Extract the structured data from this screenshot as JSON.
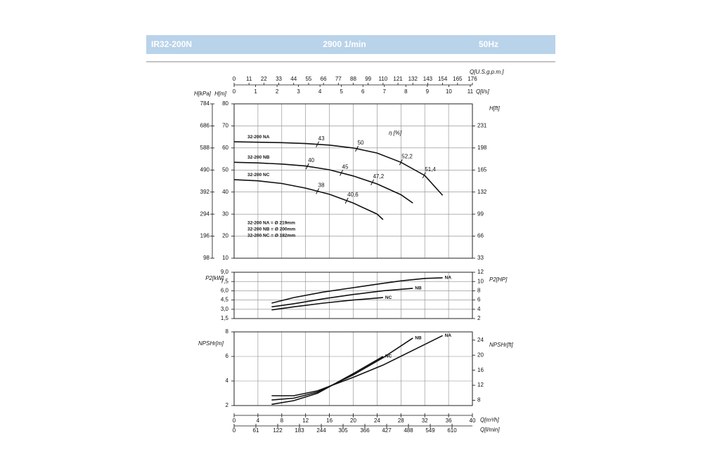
{
  "header": {
    "model": "IR32-200N",
    "speed": "2900 1/min",
    "frequency": "50Hz"
  },
  "chart_data": [
    {
      "type": "line",
      "xlim": [
        0,
        40
      ],
      "ylabel": "H[m]",
      "ylim": [
        10,
        80
      ],
      "yticks": [
        10,
        20,
        30,
        40,
        50,
        60,
        70,
        80
      ],
      "y2label": "H[ft]",
      "y2lim": [
        33,
        264
      ],
      "y2ticks": [
        33,
        66,
        99,
        132,
        165,
        198,
        231
      ],
      "y3label": "H[kPa]",
      "y3lim": [
        98,
        784
      ],
      "y3ticks": [
        98,
        196,
        294,
        392,
        490,
        588,
        686,
        784
      ],
      "top_axes": [
        {
          "label": "Q[U.S.g.p.m.]",
          "lim": [
            0,
            176
          ],
          "ticks": [
            0,
            11,
            22,
            33,
            44,
            55,
            66,
            77,
            88,
            99,
            110,
            121,
            132,
            143,
            154,
            165,
            176
          ]
        },
        {
          "label": "Q[l/s]",
          "lim": [
            0,
            11.1
          ],
          "ticks": [
            0,
            1,
            2,
            3,
            4,
            5,
            6,
            7,
            8,
            9,
            10,
            11
          ]
        }
      ],
      "eta_label": "η [%]",
      "notes": [
        "32-200 NA = Ø 219mm",
        "32-200 NB = Ø 200mm",
        "32-200 NC = Ø 182mm"
      ],
      "series": [
        {
          "name": "32-200 NA",
          "color": "#111111",
          "x": [
            0,
            4,
            8,
            12,
            16,
            20,
            24,
            28,
            32,
            35
          ],
          "values": [
            62.8,
            62.6,
            62.4,
            62,
            61.3,
            60,
            57.7,
            53.5,
            47.5,
            38.5
          ],
          "eta": {
            "x": [
              14,
              20.6,
              28,
              31.9
            ],
            "values": [
              43,
              50,
              52.2,
              51.4
            ],
            "value_labels": [
              "43",
              "50",
              "52,2",
              "51,4"
            ]
          }
        },
        {
          "name": "32-200 NB",
          "color": "#111111",
          "x": [
            0,
            4,
            8,
            12,
            16,
            20,
            24,
            28,
            30
          ],
          "values": [
            53.5,
            53.2,
            52.7,
            51.8,
            50.1,
            47.3,
            43.7,
            38.8,
            35
          ],
          "eta": {
            "x": [
              12.3,
              18,
              23.2
            ],
            "values": [
              40,
              45,
              47.2
            ],
            "value_labels": [
              "40",
              "45",
              "47,2"
            ]
          }
        },
        {
          "name": "32-200 NC",
          "color": "#111111",
          "x": [
            0,
            4,
            8,
            12,
            16,
            20,
            24,
            25
          ],
          "values": [
            45.6,
            45.1,
            43.9,
            41.8,
            39,
            35,
            30,
            27.5
          ],
          "eta": {
            "x": [
              14,
              18.9
            ],
            "values": [
              38,
              40.6
            ],
            "value_labels": [
              "38",
              "40,6"
            ]
          }
        }
      ]
    },
    {
      "type": "line",
      "xlim": [
        0,
        40
      ],
      "ylabel": "P2[kW]",
      "ylim": [
        1.5,
        9
      ],
      "yticks": [
        {
          "value": 1.5,
          "label": "1,5"
        },
        {
          "value": 3,
          "label": "3,0"
        },
        {
          "value": 4.5,
          "label": "4,5"
        },
        {
          "value": 6,
          "label": "6,0"
        },
        {
          "value": 7.5,
          "label": "7,5"
        },
        {
          "value": 9,
          "label": "9,0"
        }
      ],
      "y2label": "P2[HP]",
      "y2lim": [
        2,
        12
      ],
      "y2ticks": [
        2,
        4,
        6,
        8,
        10,
        12
      ],
      "series": [
        {
          "name": "NA",
          "color": "#111111",
          "x": [
            6.3,
            10,
            15,
            20,
            25,
            28,
            32,
            35
          ],
          "values": [
            4.0,
            4.9,
            5.8,
            6.5,
            7.2,
            7.6,
            8.0,
            8.1
          ]
        },
        {
          "name": "NB",
          "color": "#111111",
          "x": [
            6.3,
            10,
            15,
            20,
            25,
            30
          ],
          "values": [
            3.4,
            3.9,
            4.7,
            5.4,
            6.0,
            6.4
          ]
        },
        {
          "name": "NC",
          "color": "#111111",
          "x": [
            6.3,
            10,
            15,
            20,
            25
          ],
          "values": [
            2.9,
            3.4,
            4.0,
            4.5,
            4.9
          ]
        }
      ]
    },
    {
      "type": "line",
      "xlim": [
        0,
        40
      ],
      "ylabel": "NPSHr[m]",
      "ylim": [
        2,
        8
      ],
      "yticks": [
        2,
        4,
        6,
        8
      ],
      "y2label": "NPSHr[ft]",
      "y2lim": [
        6.6,
        26.2
      ],
      "y2ticks": [
        8,
        12,
        16,
        20,
        24
      ],
      "bottom_axes": [
        {
          "label": "Q[m³/h]",
          "lim": [
            0,
            40
          ],
          "ticks": [
            0,
            4,
            8,
            12,
            16,
            20,
            24,
            28,
            32,
            36,
            40
          ]
        },
        {
          "label": "Q[l/min]",
          "lim": [
            0,
            667
          ],
          "ticks": [
            0,
            61,
            122,
            183,
            244,
            305,
            366,
            427,
            488,
            549,
            610
          ]
        }
      ],
      "series": [
        {
          "name": "NA",
          "color": "#111111",
          "x": [
            6.3,
            10,
            14,
            20,
            25,
            30,
            35
          ],
          "values": [
            2.8,
            2.8,
            3.2,
            4.3,
            5.3,
            6.5,
            7.7
          ]
        },
        {
          "name": "NB",
          "color": "#111111",
          "x": [
            6.3,
            10,
            14,
            20,
            25,
            30
          ],
          "values": [
            2.45,
            2.6,
            3.1,
            4.5,
            5.9,
            7.5
          ]
        },
        {
          "name": "NC",
          "color": "#111111",
          "x": [
            6.3,
            10,
            14,
            20,
            25
          ],
          "values": [
            2.1,
            2.4,
            3.0,
            4.6,
            6.0
          ]
        }
      ]
    }
  ]
}
